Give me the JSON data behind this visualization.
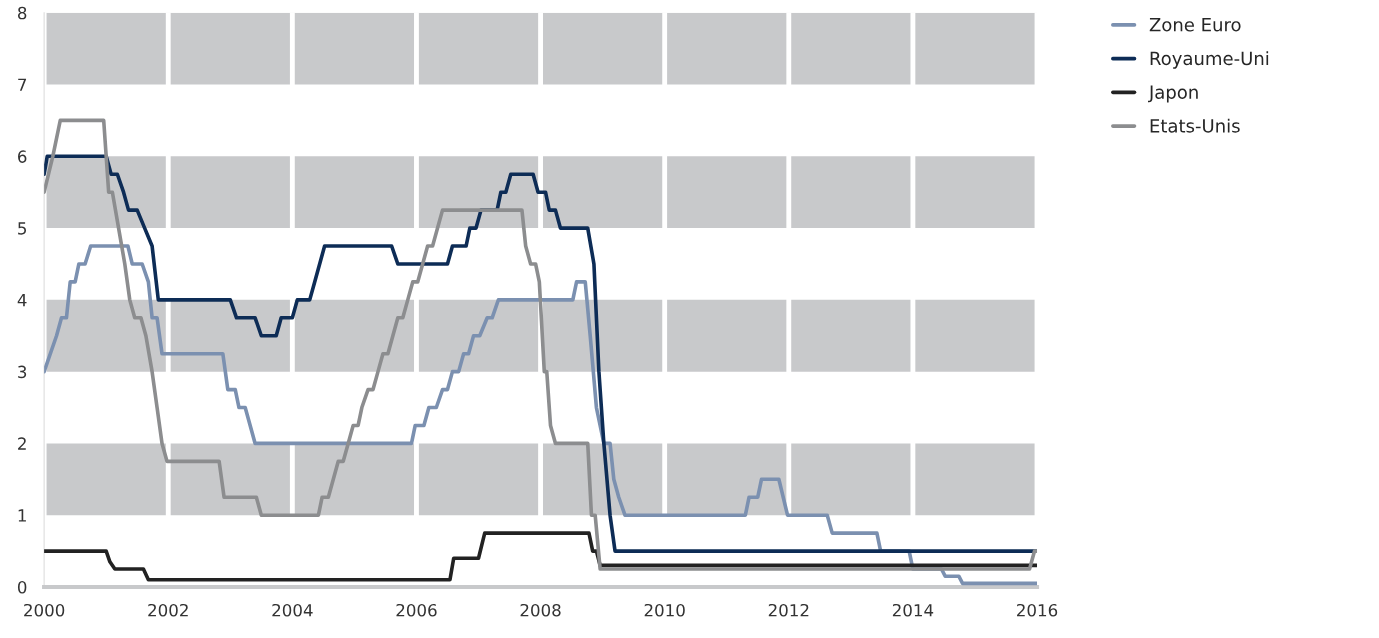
{
  "chart_data": {
    "type": "line",
    "series": [
      {
        "name": "Zone Euro",
        "color": "#7b90b0",
        "x": [
          2000.0,
          2000.2,
          2000.28,
          2000.36,
          2000.42,
          2000.5,
          2000.56,
          2000.66,
          2000.75,
          2001.35,
          2001.42,
          2001.58,
          2001.68,
          2001.74,
          2001.82,
          2001.9,
          2002.88,
          2002.96,
          2003.08,
          2003.14,
          2003.24,
          2003.4,
          2003.48,
          2005.92,
          2005.98,
          2006.12,
          2006.2,
          2006.32,
          2006.42,
          2006.5,
          2006.58,
          2006.68,
          2006.76,
          2006.84,
          2006.92,
          2007.02,
          2007.14,
          2007.22,
          2007.32,
          2007.42,
          2007.5,
          2008.52,
          2008.58,
          2008.72,
          2008.8,
          2008.9,
          2009.02,
          2009.12,
          2009.18,
          2009.26,
          2009.36,
          2009.44,
          2011.3,
          2011.36,
          2011.5,
          2011.56,
          2011.84,
          2011.98,
          2012.62,
          2012.7,
          2013.42,
          2013.48,
          2013.94,
          2014.0,
          2014.46,
          2014.52,
          2014.74,
          2014.8,
          2016.0
        ],
        "values": [
          3.0,
          3.5,
          3.75,
          3.75,
          4.25,
          4.25,
          4.5,
          4.5,
          4.75,
          4.75,
          4.5,
          4.5,
          4.25,
          3.75,
          3.75,
          3.25,
          3.25,
          2.75,
          2.75,
          2.5,
          2.5,
          2.0,
          2.0,
          2.0,
          2.25,
          2.25,
          2.5,
          2.5,
          2.75,
          2.75,
          3.0,
          3.0,
          3.25,
          3.25,
          3.5,
          3.5,
          3.75,
          3.75,
          4.0,
          4.0,
          4.0,
          4.0,
          4.25,
          4.25,
          3.5,
          2.5,
          2.0,
          2.0,
          1.5,
          1.25,
          1.0,
          1.0,
          1.0,
          1.25,
          1.25,
          1.5,
          1.5,
          1.0,
          1.0,
          0.75,
          0.75,
          0.5,
          0.5,
          0.25,
          0.25,
          0.15,
          0.15,
          0.05,
          0.05
        ]
      },
      {
        "name": "Royaume-Uni",
        "color": "#0d2c56",
        "x": [
          2000.0,
          2000.05,
          2001.0,
          2001.08,
          2001.18,
          2001.28,
          2001.36,
          2001.5,
          2001.62,
          2001.74,
          2001.84,
          2003.0,
          2003.1,
          2003.4,
          2003.5,
          2003.74,
          2003.82,
          2004.0,
          2004.08,
          2004.28,
          2004.36,
          2004.44,
          2004.52,
          2005.6,
          2005.7,
          2006.5,
          2006.58,
          2006.8,
          2006.86,
          2006.96,
          2007.04,
          2007.3,
          2007.36,
          2007.44,
          2007.52,
          2007.88,
          2007.96,
          2008.08,
          2008.14,
          2008.24,
          2008.32,
          2008.76,
          2008.86,
          2008.94,
          2009.02,
          2009.12,
          2009.2,
          2016.0
        ],
        "values": [
          5.75,
          6.0,
          6.0,
          5.75,
          5.75,
          5.5,
          5.25,
          5.25,
          5.0,
          4.75,
          4.0,
          4.0,
          3.75,
          3.75,
          3.5,
          3.5,
          3.75,
          3.75,
          4.0,
          4.0,
          4.25,
          4.5,
          4.75,
          4.75,
          4.5,
          4.5,
          4.75,
          4.75,
          5.0,
          5.0,
          5.25,
          5.25,
          5.5,
          5.5,
          5.75,
          5.75,
          5.5,
          5.5,
          5.25,
          5.25,
          5.0,
          5.0,
          4.5,
          3.0,
          2.0,
          1.0,
          0.5,
          0.5
        ]
      },
      {
        "name": "Japon",
        "color": "#222222",
        "x": [
          2000.0,
          2001.0,
          2001.06,
          2001.14,
          2001.6,
          2001.68,
          2006.54,
          2006.6,
          2007.0,
          2007.1,
          2008.78,
          2008.84,
          2008.9,
          2008.96,
          2016.0
        ],
        "values": [
          0.5,
          0.5,
          0.35,
          0.25,
          0.25,
          0.1,
          0.1,
          0.4,
          0.4,
          0.75,
          0.75,
          0.5,
          0.5,
          0.3,
          0.3
        ]
      },
      {
        "name": "Etats-Unis",
        "color": "#8c8d8f",
        "x": [
          2000.0,
          2000.14,
          2000.26,
          2000.96,
          2001.04,
          2001.1,
          2001.2,
          2001.3,
          2001.38,
          2001.46,
          2001.56,
          2001.64,
          2001.74,
          2001.82,
          2001.9,
          2001.98,
          2002.82,
          2002.9,
          2003.42,
          2003.5,
          2004.42,
          2004.48,
          2004.58,
          2004.66,
          2004.74,
          2004.82,
          2004.9,
          2004.98,
          2005.06,
          2005.12,
          2005.22,
          2005.3,
          2005.38,
          2005.46,
          2005.54,
          2005.62,
          2005.7,
          2005.78,
          2005.86,
          2005.94,
          2006.02,
          2006.1,
          2006.18,
          2006.26,
          2006.34,
          2006.42,
          2006.5,
          2007.7,
          2007.76,
          2007.84,
          2007.92,
          2007.98,
          2008.06,
          2008.1,
          2008.16,
          2008.24,
          2008.34,
          2008.76,
          2008.82,
          2008.88,
          2008.96,
          2015.88,
          2015.96,
          2016.0
        ],
        "values": [
          5.5,
          6.0,
          6.5,
          6.5,
          5.5,
          5.5,
          5.0,
          4.5,
          4.0,
          3.75,
          3.75,
          3.5,
          3.0,
          2.5,
          2.0,
          1.75,
          1.75,
          1.25,
          1.25,
          1.0,
          1.0,
          1.25,
          1.25,
          1.5,
          1.75,
          1.75,
          2.0,
          2.25,
          2.25,
          2.5,
          2.75,
          2.75,
          3.0,
          3.25,
          3.25,
          3.5,
          3.75,
          3.75,
          4.0,
          4.25,
          4.25,
          4.5,
          4.75,
          4.75,
          5.0,
          5.25,
          5.25,
          5.25,
          4.75,
          4.5,
          4.5,
          4.25,
          3.0,
          3.0,
          2.25,
          2.0,
          2.0,
          2.0,
          1.0,
          1.0,
          0.25,
          0.25,
          0.5,
          0.5
        ]
      }
    ],
    "xlim": [
      2000,
      2016
    ],
    "xticks": [
      2000,
      2002,
      2004,
      2006,
      2008,
      2010,
      2012,
      2014,
      2016
    ],
    "ylim": [
      0,
      8
    ],
    "yticks": [
      0,
      1,
      2,
      3,
      4,
      5,
      6,
      7,
      8
    ],
    "bands": [
      {
        "axis": "y",
        "from": 1,
        "to": 2,
        "color": "#c8c9cb"
      },
      {
        "axis": "y",
        "from": 3,
        "to": 4,
        "color": "#c8c9cb"
      },
      {
        "axis": "y",
        "from": 5,
        "to": 6,
        "color": "#c8c9cb"
      },
      {
        "axis": "y",
        "from": 7,
        "to": 8,
        "color": "#c8c9cb"
      }
    ],
    "grid": "x",
    "legend": "top right",
    "marker": "none",
    "line_style": "solid"
  }
}
